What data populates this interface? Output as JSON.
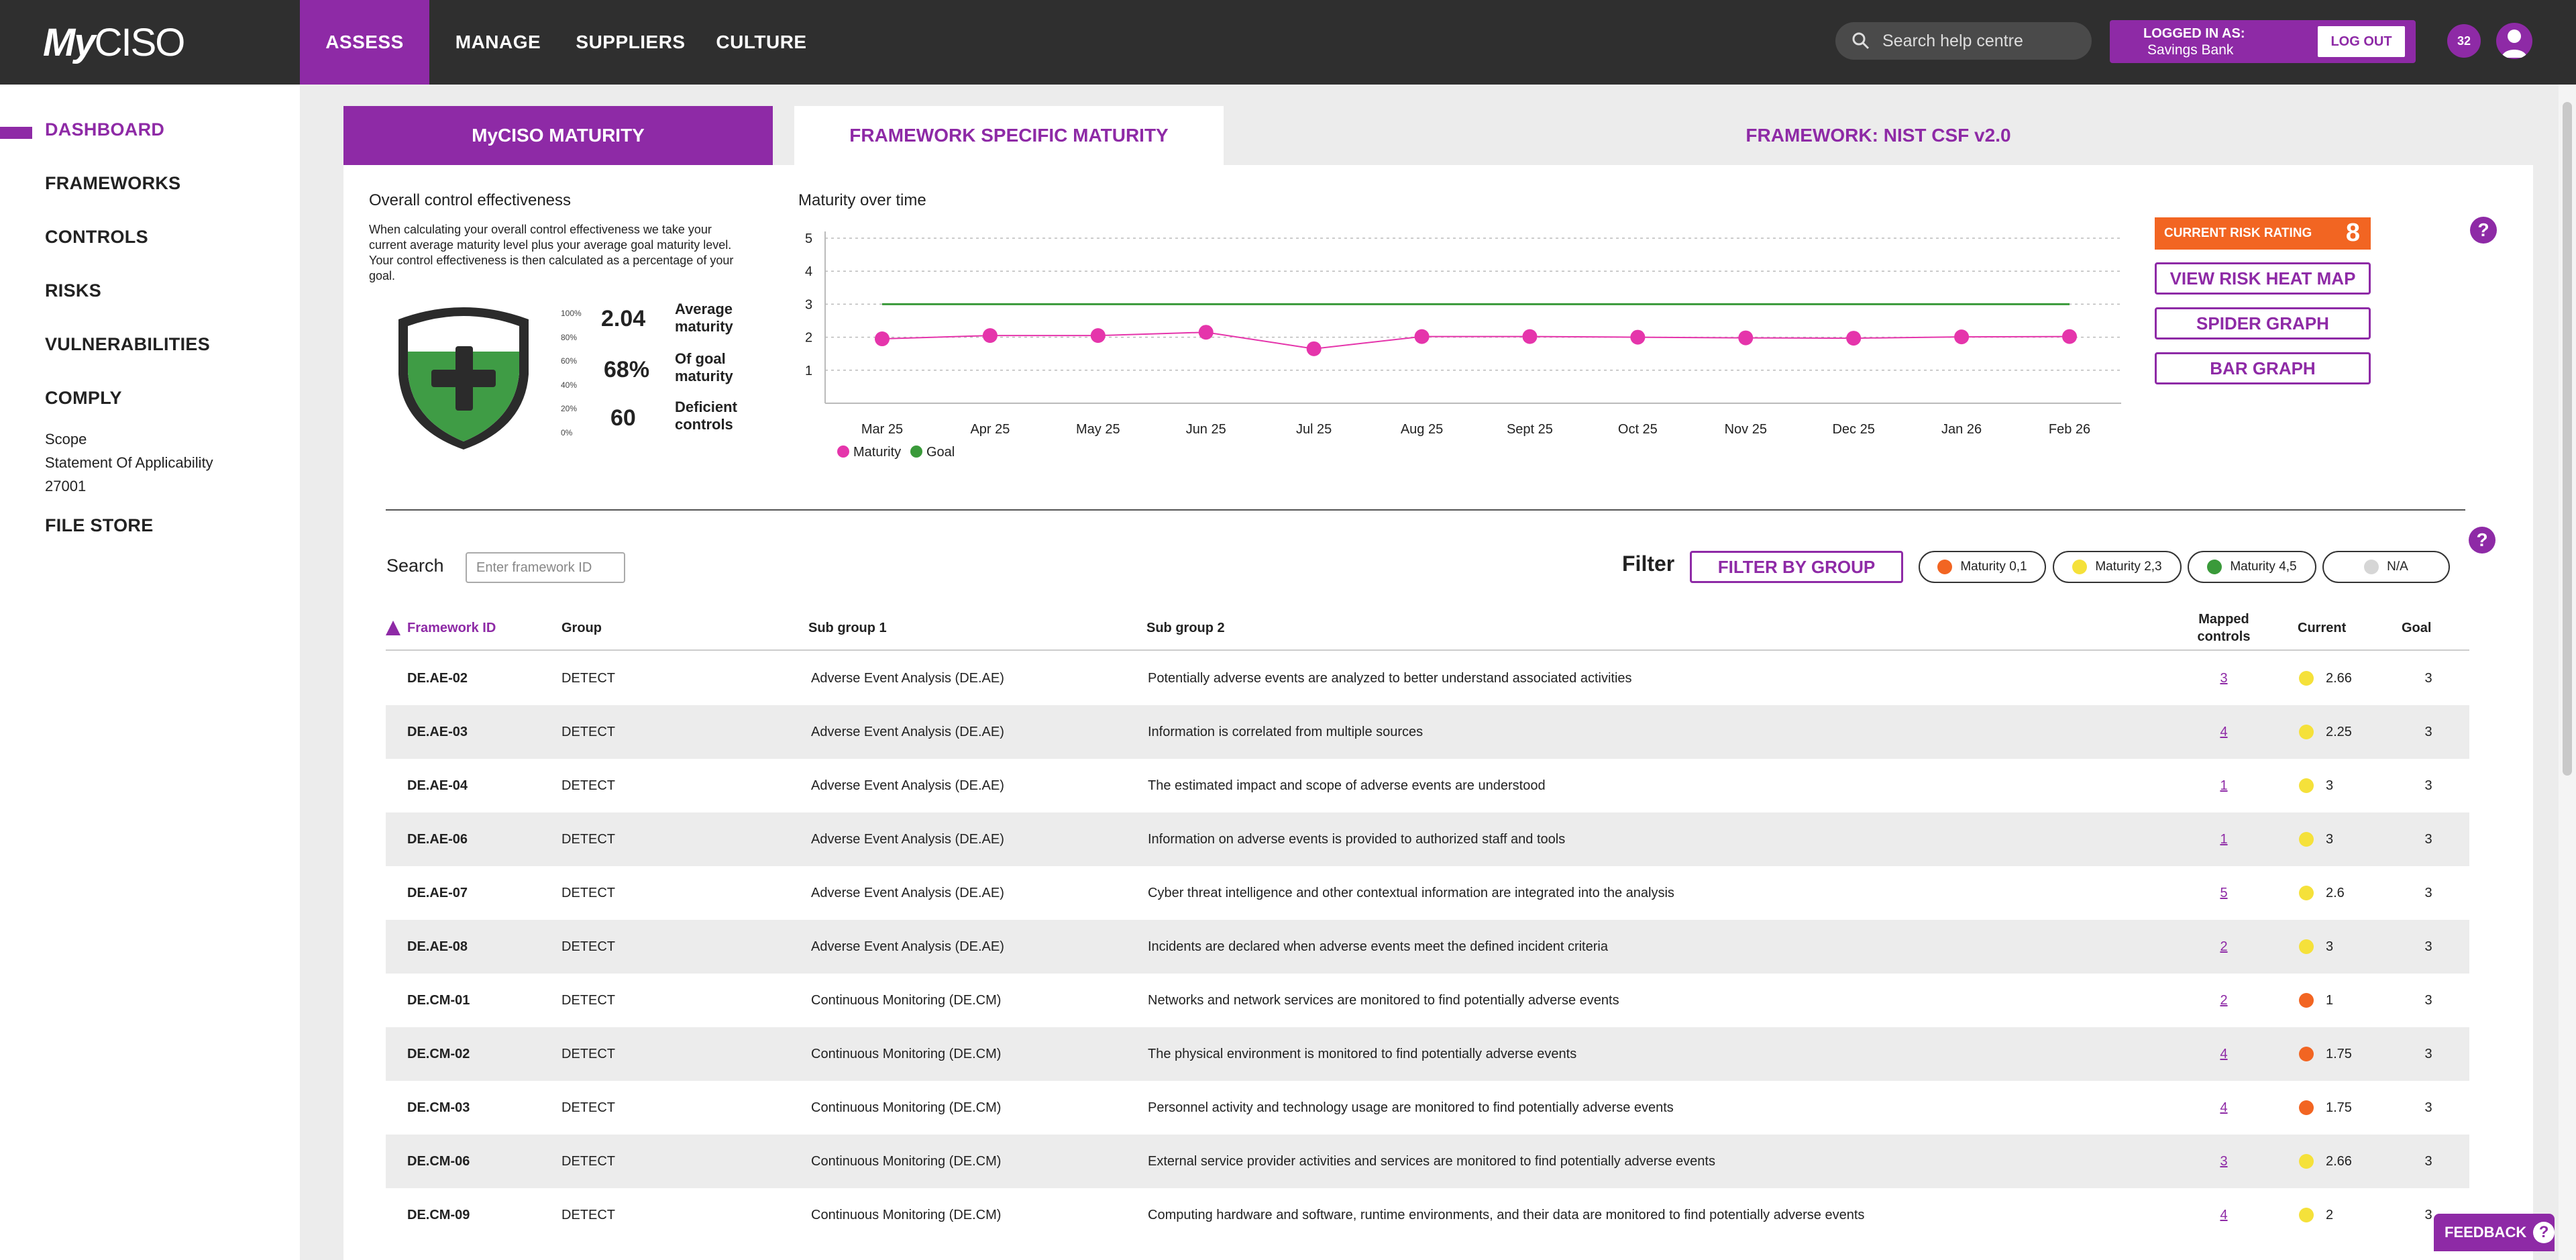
{
  "brand": {
    "logo_text_a": "My",
    "logo_text_b": "CISO"
  },
  "nav": {
    "items": [
      "ASSESS",
      "MANAGE",
      "SUPPLIERS",
      "CULTURE"
    ]
  },
  "search_help": {
    "placeholder": "Search help centre"
  },
  "login": {
    "label": "LOGGED IN AS:",
    "name": "Savings Bank",
    "logout": "LOG OUT"
  },
  "notifications": {
    "count": "32"
  },
  "sidebar": {
    "items": [
      "DASHBOARD",
      "FRAMEWORKS",
      "CONTROLS",
      "RISKS",
      "VULNERABILITIES",
      "COMPLY",
      "FILE STORE"
    ],
    "comply_sub": [
      "Scope",
      "Statement Of Applicability",
      "27001"
    ]
  },
  "tabs": [
    "MyCISO MATURITY",
    "FRAMEWORK SPECIFIC MATURITY",
    "FRAMEWORK: NIST CSF v2.0"
  ],
  "effectiveness": {
    "title": "Overall control effectiveness",
    "description": "When calculating your overall control effectiveness we take your current average maturity level plus your average goal maturity level. Your control effectiveness is then calculated as a percentage of your goal.",
    "scale": [
      "100%",
      "80%",
      "60%",
      "40%",
      "20%",
      "0%"
    ],
    "fill_level": 0.68,
    "average_maturity": "2.04",
    "average_maturity_label": "Average maturity",
    "goal_pct": "68%",
    "goal_pct_label": "Of goal maturity",
    "deficient": "60",
    "deficient_label": "Deficient controls"
  },
  "maturity_chart": {
    "title": "Maturity over time",
    "chart_data": {
      "type": "line",
      "x": [
        "Mar 25",
        "Apr 25",
        "May 25",
        "Jun 25",
        "Jul 25",
        "Aug 25",
        "Sept 25",
        "Oct 25",
        "Nov 25",
        "Dec 25",
        "Jan 26",
        "Feb 26"
      ],
      "series": [
        {
          "name": "Maturity",
          "color": "#e535ab",
          "values": [
            1.95,
            2.05,
            2.05,
            2.15,
            1.65,
            2.02,
            2.02,
            2.0,
            1.98,
            1.97,
            2.01,
            2.02
          ]
        },
        {
          "name": "Goal",
          "color": "#3a9a3a",
          "values": [
            3,
            3,
            3,
            3,
            3,
            3,
            3,
            3,
            3,
            3,
            3,
            3
          ]
        }
      ],
      "y_ticks": [
        1,
        2,
        3,
        4,
        5
      ],
      "ylim": [
        0,
        5
      ],
      "grid": true,
      "legend": "bottom-left"
    }
  },
  "risk": {
    "label": "CURRENT RISK RATING",
    "value": "8"
  },
  "actions": [
    "VIEW RISK HEAT MAP",
    "SPIDER GRAPH",
    "BAR GRAPH"
  ],
  "table_controls": {
    "search_label": "Search",
    "search_placeholder": "Enter framework ID",
    "filter_label": "Filter",
    "filter_button": "FILTER BY GROUP",
    "pills": [
      {
        "label": "Maturity 0,1",
        "color": "#f26522"
      },
      {
        "label": "Maturity 2,3",
        "color": "#f5e13a"
      },
      {
        "label": "Maturity 4,5",
        "color": "#3a9a3a"
      },
      {
        "label": "N/A",
        "color": "#d6d6d6"
      }
    ]
  },
  "table": {
    "columns": [
      "Framework ID",
      "Group",
      "Sub group 1",
      "Sub group 2",
      "Mapped controls",
      "Current",
      "Goal"
    ],
    "rows": [
      {
        "id": "DE.AE-02",
        "group": "DETECT",
        "sub1": "Adverse Event Analysis (DE.AE)",
        "sub2": "Potentially adverse events are analyzed to better understand associated activities",
        "mapped": "3",
        "current": "2.66",
        "color": "#f5e13a",
        "goal": "3"
      },
      {
        "id": "DE.AE-03",
        "group": "DETECT",
        "sub1": "Adverse Event Analysis (DE.AE)",
        "sub2": "Information is correlated from multiple sources",
        "mapped": "4",
        "current": "2.25",
        "color": "#f5e13a",
        "goal": "3"
      },
      {
        "id": "DE.AE-04",
        "group": "DETECT",
        "sub1": "Adverse Event Analysis (DE.AE)",
        "sub2": "The estimated impact and scope of adverse events are understood",
        "mapped": "1",
        "current": "3",
        "color": "#f5e13a",
        "goal": "3"
      },
      {
        "id": "DE.AE-06",
        "group": "DETECT",
        "sub1": "Adverse Event Analysis (DE.AE)",
        "sub2": "Information on adverse events is provided to authorized staff and tools",
        "mapped": "1",
        "current": "3",
        "color": "#f5e13a",
        "goal": "3"
      },
      {
        "id": "DE.AE-07",
        "group": "DETECT",
        "sub1": "Adverse Event Analysis (DE.AE)",
        "sub2": "Cyber threat intelligence and other contextual information are integrated into the analysis",
        "mapped": "5",
        "current": "2.6",
        "color": "#f5e13a",
        "goal": "3"
      },
      {
        "id": "DE.AE-08",
        "group": "DETECT",
        "sub1": "Adverse Event Analysis (DE.AE)",
        "sub2": "Incidents are declared when adverse events meet the defined incident criteria",
        "mapped": "2",
        "current": "3",
        "color": "#f5e13a",
        "goal": "3"
      },
      {
        "id": "DE.CM-01",
        "group": "DETECT",
        "sub1": "Continuous Monitoring (DE.CM)",
        "sub2": "Networks and network services are monitored to find potentially adverse events",
        "mapped": "2",
        "current": "1",
        "color": "#f26522",
        "goal": "3"
      },
      {
        "id": "DE.CM-02",
        "group": "DETECT",
        "sub1": "Continuous Monitoring (DE.CM)",
        "sub2": "The physical environment is monitored to find potentially adverse events",
        "mapped": "4",
        "current": "1.75",
        "color": "#f26522",
        "goal": "3"
      },
      {
        "id": "DE.CM-03",
        "group": "DETECT",
        "sub1": "Continuous Monitoring (DE.CM)",
        "sub2": "Personnel activity and technology usage are monitored to find potentially adverse events",
        "mapped": "4",
        "current": "1.75",
        "color": "#f26522",
        "goal": "3"
      },
      {
        "id": "DE.CM-06",
        "group": "DETECT",
        "sub1": "Continuous Monitoring (DE.CM)",
        "sub2": "External service provider activities and services are monitored to find potentially adverse events",
        "mapped": "3",
        "current": "2.66",
        "color": "#f5e13a",
        "goal": "3"
      },
      {
        "id": "DE.CM-09",
        "group": "DETECT",
        "sub1": "Continuous Monitoring (DE.CM)",
        "sub2": "Computing hardware and software, runtime environments, and their data are monitored to find potentially adverse events",
        "mapped": "4",
        "current": "2",
        "color": "#f5e13a",
        "goal": "3"
      }
    ]
  },
  "feedback": {
    "label": "FEEDBACK",
    "icon": "?"
  },
  "help_icon": "?"
}
